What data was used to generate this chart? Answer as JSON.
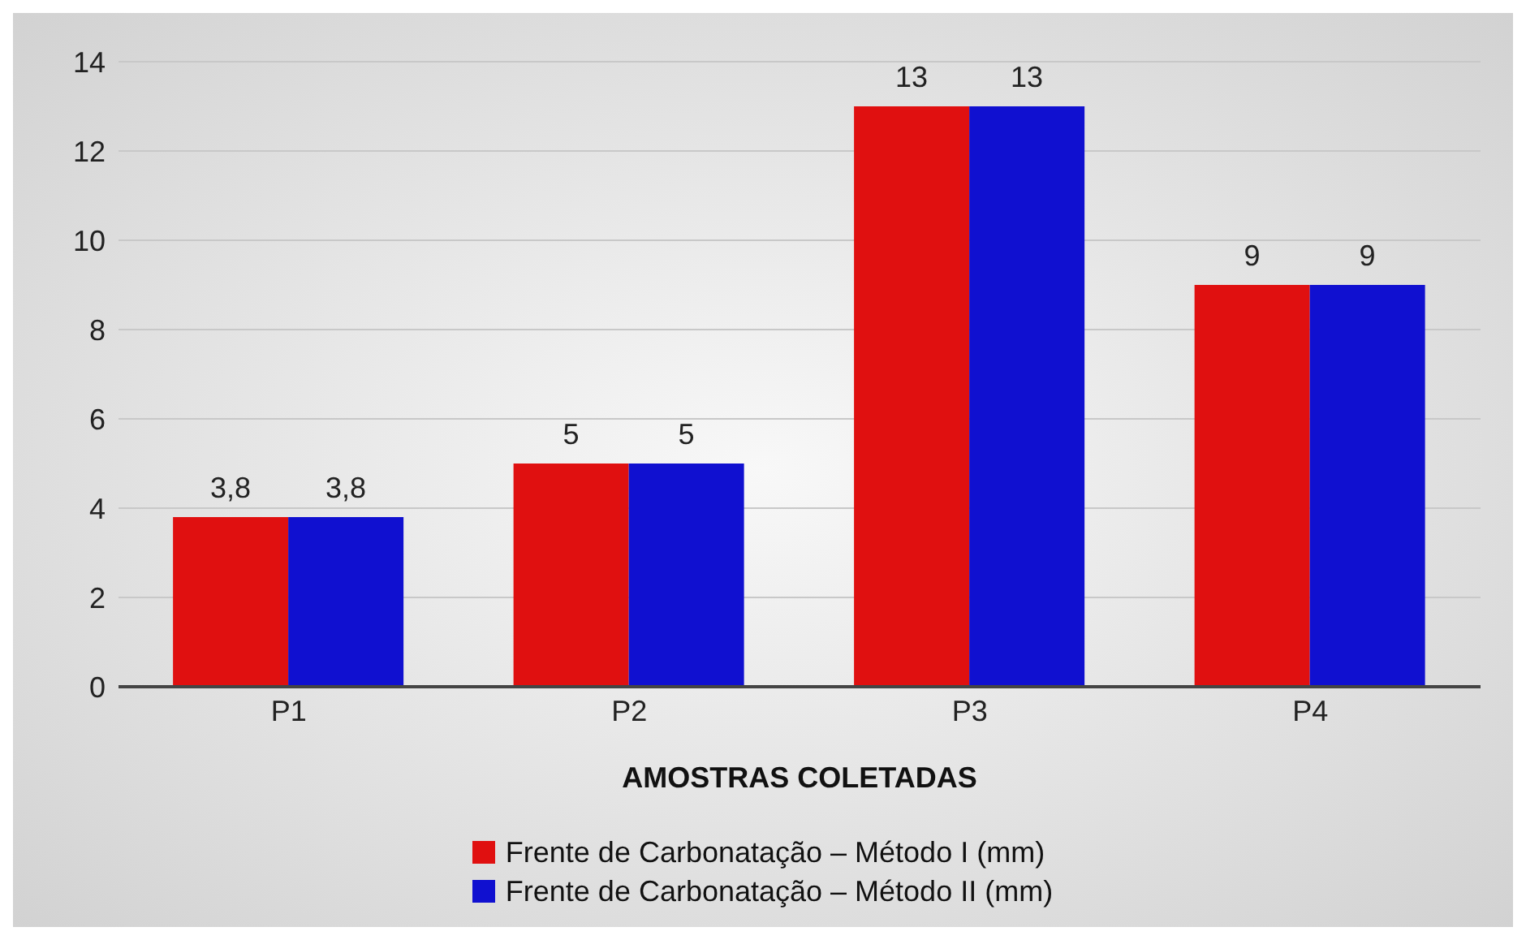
{
  "chart_data": {
    "type": "bar",
    "categories": [
      "P1",
      "P2",
      "P3",
      "P4"
    ],
    "series": [
      {
        "name": "Frente de Carbonatação – Método I (mm)",
        "color": "#e01010",
        "values": [
          3.8,
          5,
          13,
          9
        ],
        "value_labels": [
          "3,8",
          "5",
          "13",
          "9"
        ]
      },
      {
        "name": "Frente de Carbonatação – Método II (mm)",
        "color": "#1010d0",
        "values": [
          3.8,
          5,
          13,
          9
        ],
        "value_labels": [
          "3,8",
          "5",
          "13",
          "9"
        ]
      }
    ],
    "xlabel": "AMOSTRAS COLETADAS",
    "ylim": [
      0,
      14
    ],
    "yticks": [
      0,
      2,
      4,
      6,
      8,
      10,
      12,
      14
    ],
    "grid": "y",
    "legend": "bottom"
  }
}
